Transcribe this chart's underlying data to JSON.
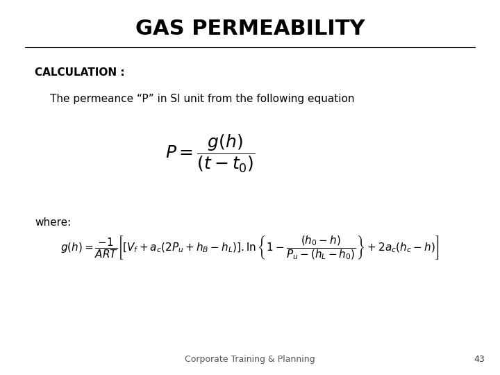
{
  "title": "GAS PERMEABILITY",
  "background_color": "#ffffff",
  "title_fontsize": 22,
  "title_fontweight": "bold",
  "calc_label": "CALCULATION :",
  "calc_label_fontsize": 11,
  "calc_label_fontweight": "bold",
  "desc_text": "The permeance “P” in SI unit from the following equation",
  "desc_fontsize": 11,
  "formula1": "$P = \\dfrac{g(h)}{(t - t_0)}$",
  "formula1_fontsize": 18,
  "where_text": "where:",
  "where_fontsize": 11,
  "formula2": "$g(h) = \\dfrac{-1}{ART}\\left[\\left[V_f + a_c(2P_u + h_B - h_L)\\right].\\ln\\left\\{1 - \\dfrac{(h_0 - h)}{P_u - (h_L - h_0)}\\right\\} + 2a_c(h_c - h)\\right]$",
  "formula2_fontsize": 11,
  "footer_text": "Corporate Training & Planning",
  "footer_fontsize": 9,
  "page_num": "43",
  "page_num_fontsize": 9
}
